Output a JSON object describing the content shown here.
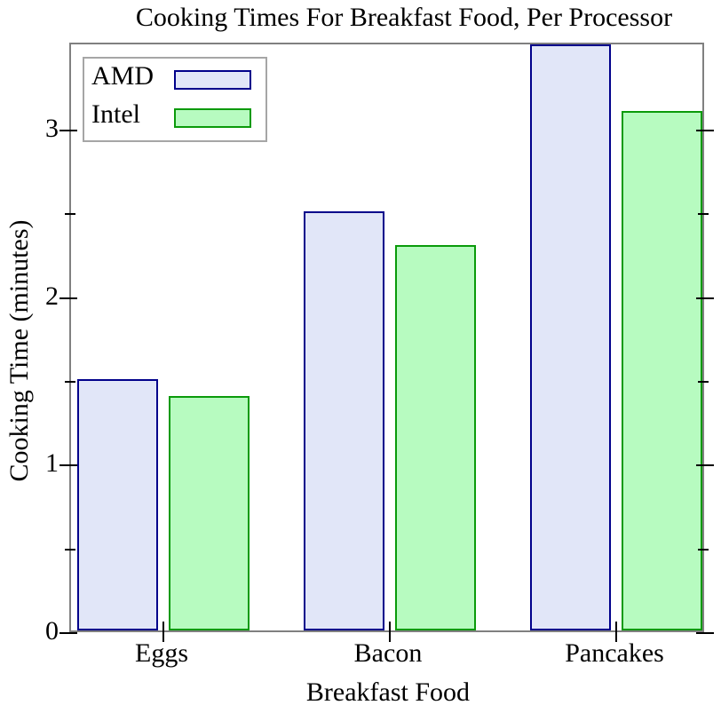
{
  "chart_data": {
    "type": "bar",
    "title": "Cooking Times For Breakfast Food, Per Processor",
    "xlabel": "Breakfast Food",
    "ylabel": "Cooking Time (minutes)",
    "categories": [
      "Eggs",
      "Bacon",
      "Pancakes"
    ],
    "series": [
      {
        "name": "AMD",
        "values": [
          1.5,
          2.5,
          3.5
        ],
        "fill": "#e1e6f8",
        "stroke": "#00008b"
      },
      {
        "name": "Intel",
        "values": [
          1.4,
          2.3,
          3.1
        ],
        "fill": "#b7fbc0",
        "stroke": "#0a9a0a"
      }
    ],
    "ylim": [
      0,
      3.52
    ],
    "yticks": [
      0,
      1,
      2,
      3
    ],
    "yminorticks": [
      0.5,
      1.5,
      2.5
    ],
    "grid": false,
    "legend_position": "top-left"
  },
  "colors": {
    "frame": "#808080",
    "legend_border": "#a6a6a6",
    "tick": "#000000",
    "background": "#ffffff"
  }
}
